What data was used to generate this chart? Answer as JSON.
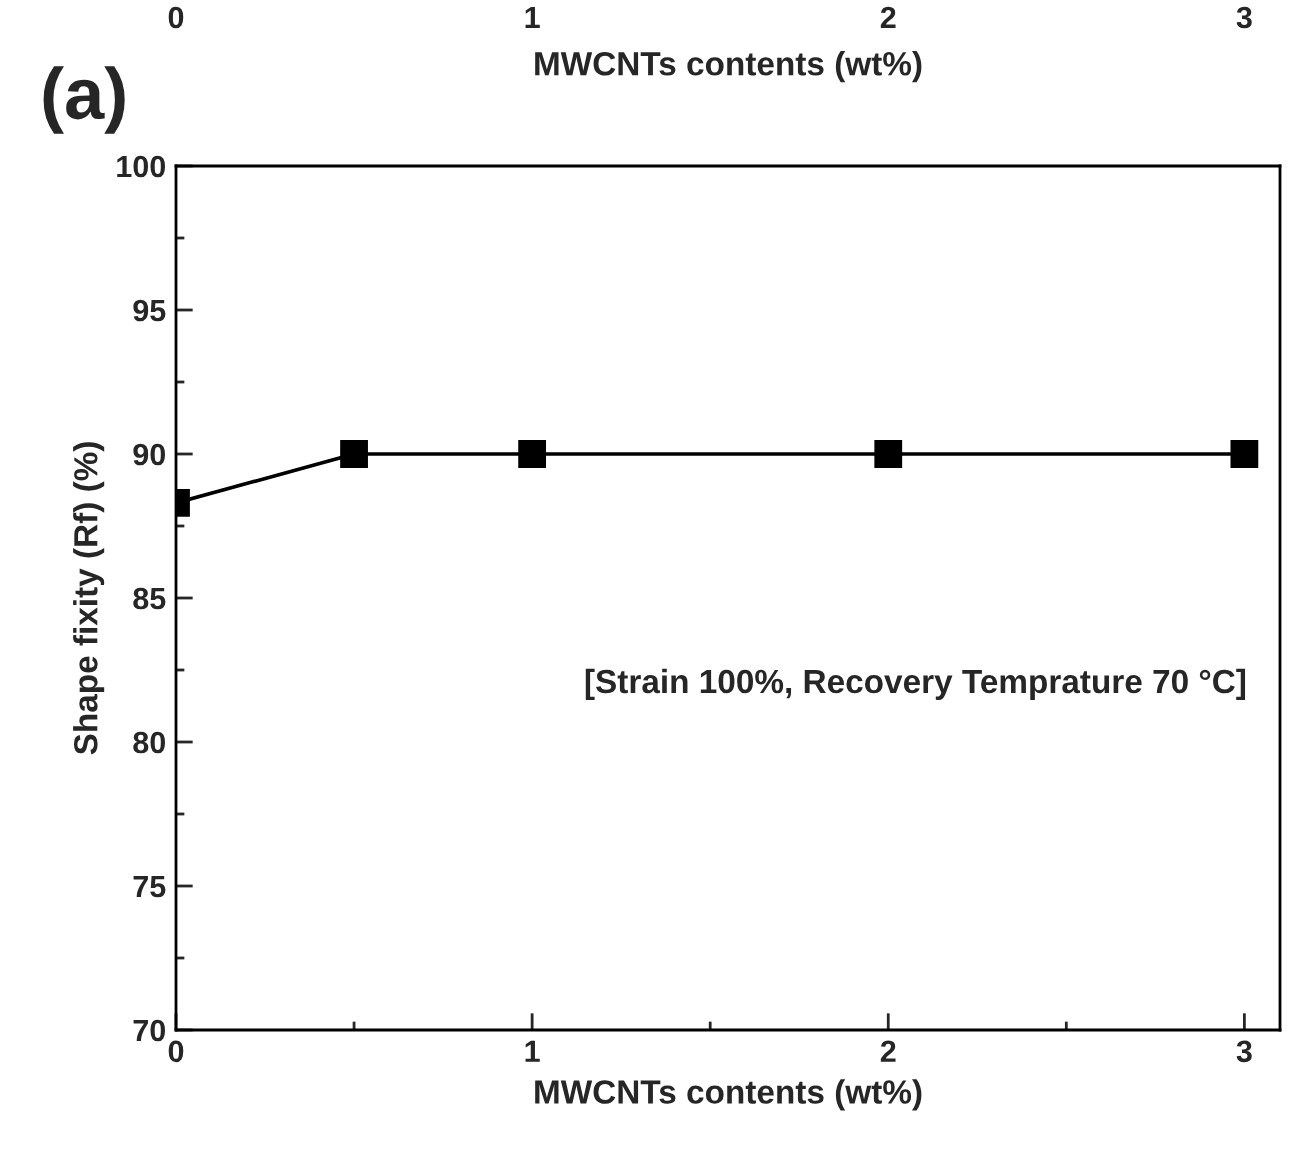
{
  "chart_data": {
    "type": "line",
    "x": [
      0,
      0.5,
      1,
      2,
      3
    ],
    "series": [
      {
        "color": "#000000",
        "values": [
          88.3,
          90,
          90,
          90,
          90
        ]
      }
    ],
    "xlabel": "MWCNTs contents (wt%)",
    "ylabel": "Shape fixity (Rf) (%)",
    "x2label": "MWCNTs contents (wt%)",
    "xlim": [
      0,
      3.1
    ],
    "xticks": [
      0,
      1,
      2,
      3
    ],
    "x2lim": [
      0,
      3.1
    ],
    "x2ticks": [
      0,
      1,
      2,
      3
    ],
    "ylim": [
      70,
      100
    ],
    "yticks": [
      70,
      75,
      80,
      85,
      90,
      95,
      100
    ],
    "marker": "square",
    "line_style": "solid",
    "grid": false,
    "legend": false,
    "annotations": [
      "(a)",
      "[Strain 100%, Recovery Temprature 70 °C]"
    ]
  }
}
